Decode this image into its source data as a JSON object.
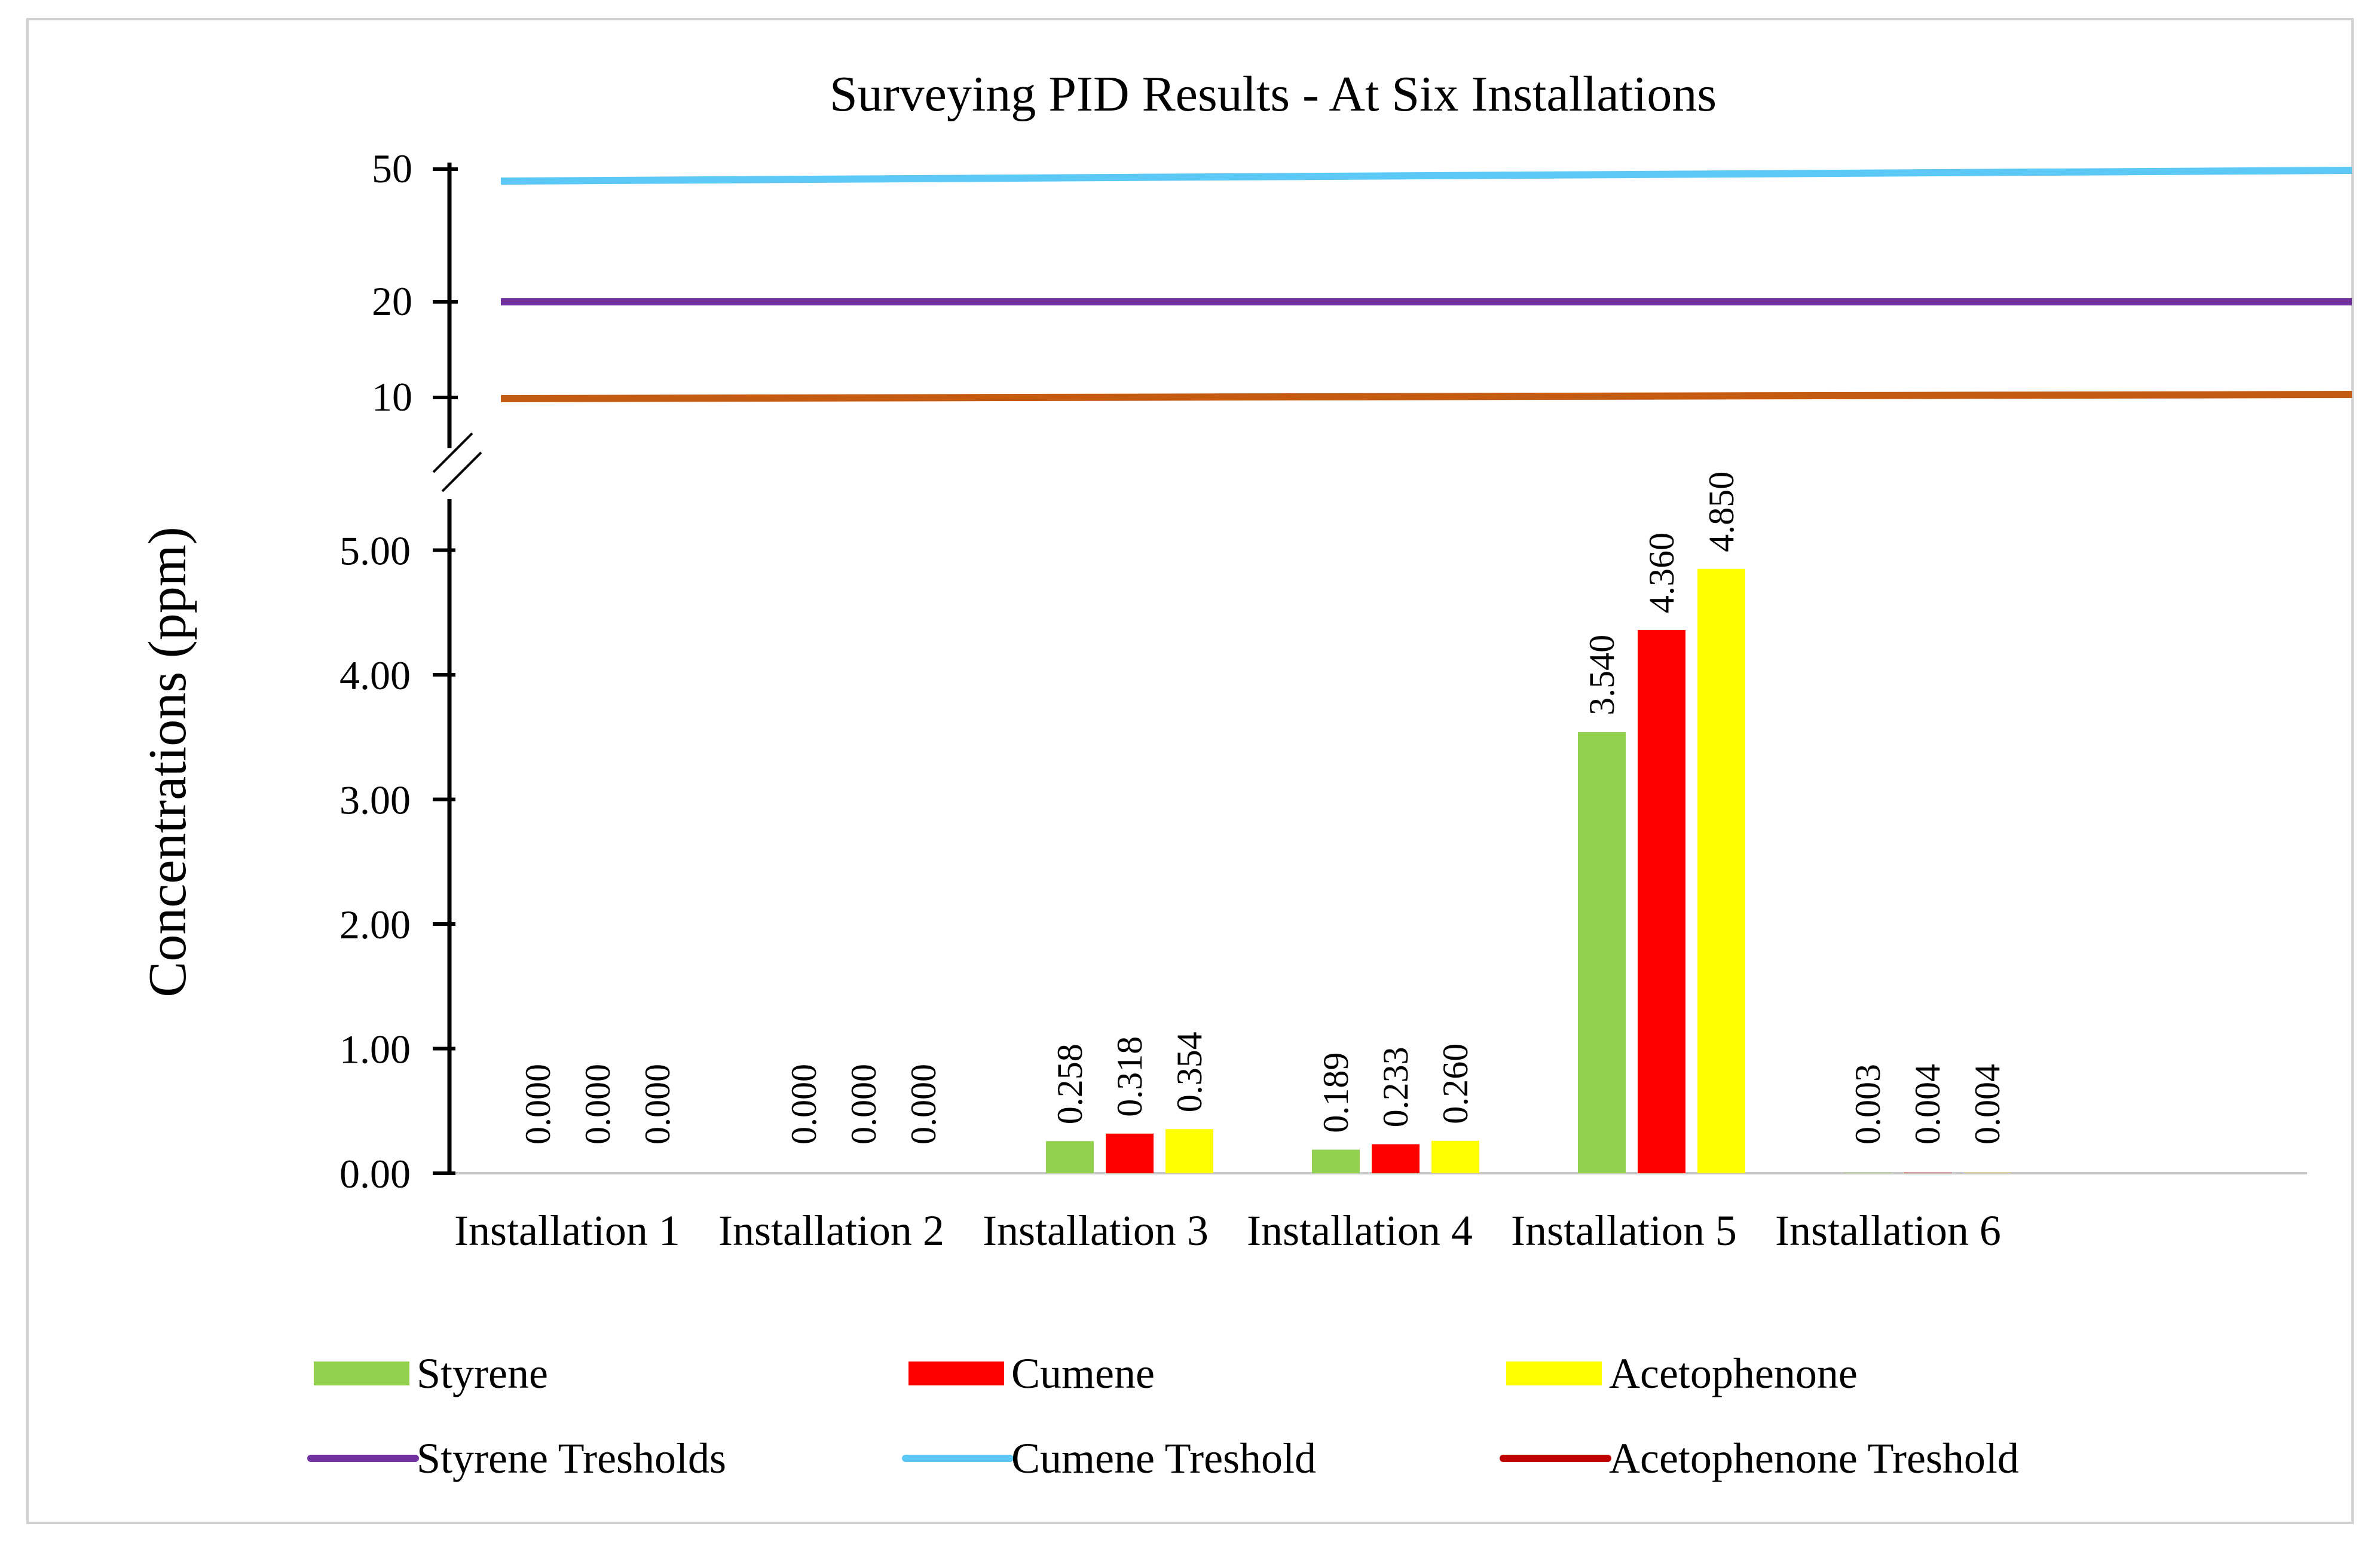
{
  "chart_data": {
    "type": "bar",
    "title": "Surveying PID Results - At Six Installations",
    "xlabel": "",
    "ylabel": "Concentrations (ppm)",
    "categories": [
      "Installation 1",
      "Installation 2",
      "Installation 3",
      "Installation 4",
      "Installation 5",
      "Installation 6"
    ],
    "series": [
      {
        "name": "Styrene",
        "color": "#92d050",
        "values": [
          0.0,
          0.0,
          0.258,
          0.189,
          3.54,
          0.003
        ],
        "labels": [
          "0.000",
          "0.000",
          "0.258",
          "0.189",
          "3.540",
          "0.003"
        ]
      },
      {
        "name": "Cumene",
        "color": "#ff0000",
        "values": [
          0.0,
          0.0,
          0.318,
          0.233,
          4.36,
          0.004
        ],
        "labels": [
          "0.000",
          "0.000",
          "0.318",
          "0.233",
          "4.360",
          "0.004"
        ]
      },
      {
        "name": "Acetophenone",
        "color": "#ffff00",
        "values": [
          0.0,
          0.0,
          0.354,
          0.26,
          4.85,
          0.004
        ],
        "labels": [
          "0.000",
          "0.000",
          "0.354",
          "0.260",
          "4.850",
          "0.004"
        ]
      }
    ],
    "lower_axis": {
      "ylim": [
        0,
        5.5
      ],
      "ticks": [
        0,
        1,
        2,
        3,
        4,
        5
      ],
      "tick_labels": [
        "0.00",
        "1.00",
        "2.00",
        "3.00",
        "4.00",
        "5.00"
      ]
    },
    "upper_axis": {
      "ticks": [
        10,
        20,
        50
      ],
      "tick_labels": [
        "10",
        "20",
        "50"
      ]
    },
    "thresholds": [
      {
        "name": "Styrene Tresholds",
        "value": 20,
        "color": "#7030a0"
      },
      {
        "name": "Cumene Treshold",
        "value": 50,
        "color": "#5bc8f5"
      },
      {
        "name": "Acetophenone Treshold",
        "value": 10,
        "color": "#c55a11",
        "legend_color": "#c00000"
      }
    ],
    "legend": [
      {
        "label": "Styrene",
        "kind": "bar",
        "color": "#92d050"
      },
      {
        "label": "Cumene",
        "kind": "bar",
        "color": "#ff0000"
      },
      {
        "label": "Acetophenone",
        "kind": "bar",
        "color": "#ffff00"
      },
      {
        "label": "Styrene Tresholds",
        "kind": "line",
        "color": "#7030a0"
      },
      {
        "label": "Cumene Treshold",
        "kind": "line",
        "color": "#5bc8f5"
      },
      {
        "label": "Acetophenone Treshold",
        "kind": "line",
        "color": "#c00000"
      }
    ],
    "legend_position": "bottom"
  }
}
